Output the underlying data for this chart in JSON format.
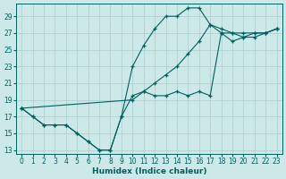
{
  "title": "",
  "xlabel": "Humidex (Indice chaleur)",
  "ylabel": "",
  "bg_color": "#cce8e8",
  "line_color": "#006060",
  "grid_color": "#aacccc",
  "xlim": [
    -0.5,
    23.5
  ],
  "ylim": [
    12.5,
    30.5
  ],
  "xticks": [
    0,
    1,
    2,
    3,
    4,
    5,
    6,
    7,
    8,
    9,
    10,
    11,
    12,
    13,
    14,
    15,
    16,
    17,
    18,
    19,
    20,
    21,
    22,
    23
  ],
  "yticks": [
    13,
    15,
    17,
    19,
    21,
    23,
    25,
    27,
    29
  ],
  "series": [
    {
      "x": [
        0,
        1,
        2,
        3,
        4,
        5,
        6,
        7,
        8,
        9,
        10,
        11,
        12,
        13,
        14,
        15,
        16,
        17,
        18,
        19,
        20,
        21,
        22,
        23
      ],
      "y": [
        18,
        17,
        16,
        16,
        16,
        15,
        14,
        13,
        13,
        17,
        19.5,
        20,
        19.5,
        19.5,
        20,
        19.5,
        20,
        19.5,
        27,
        27,
        27,
        27,
        27,
        27.5
      ]
    },
    {
      "x": [
        0,
        1,
        2,
        3,
        4,
        5,
        6,
        7,
        8,
        9,
        10,
        11,
        12,
        13,
        14,
        15,
        16,
        17,
        18,
        19,
        20,
        21,
        22,
        23
      ],
      "y": [
        18,
        17,
        16,
        16,
        16,
        15,
        14,
        13,
        13,
        17,
        23,
        25.5,
        27.5,
        29,
        29,
        30,
        30,
        28,
        27.5,
        27,
        26.5,
        27,
        27,
        27.5
      ]
    },
    {
      "x": [
        0,
        10,
        11,
        12,
        13,
        14,
        15,
        16,
        17,
        18,
        19,
        20,
        21,
        22,
        23
      ],
      "y": [
        18,
        19,
        20,
        21,
        22,
        23,
        24.5,
        26,
        28,
        27,
        26,
        26.5,
        26.5,
        27,
        27.5
      ]
    }
  ]
}
